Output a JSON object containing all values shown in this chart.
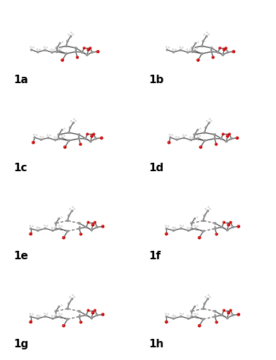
{
  "background_color": "#ffffff",
  "grid_rows": 4,
  "grid_cols": 2,
  "labels": [
    "1a",
    "1b",
    "1c",
    "1d",
    "1e",
    "1f",
    "1g",
    "1h"
  ],
  "label_fontsize": 11,
  "label_fontweight": "bold",
  "figsize": [
    3.92,
    5.11
  ],
  "dpi": 100,
  "atom_colors": {
    "carbon": "#8c8c8c",
    "oxygen": "#cc0000",
    "hydrogen": "#d0d0d0",
    "bond": "#5a5a5a"
  }
}
